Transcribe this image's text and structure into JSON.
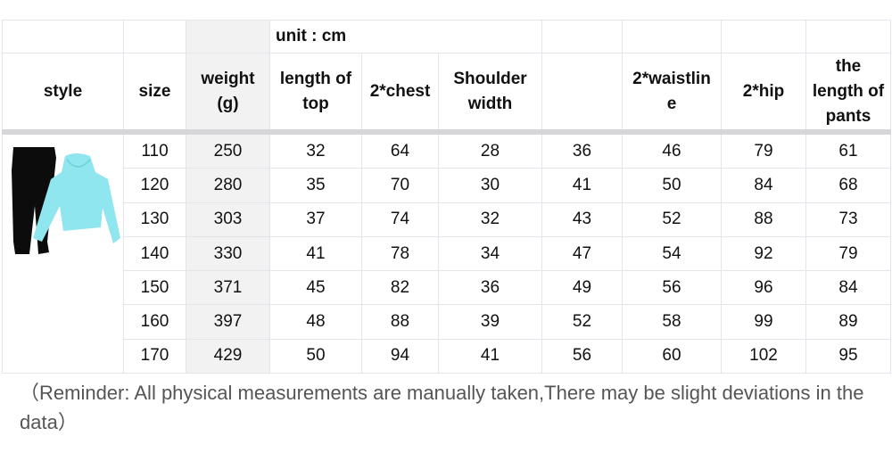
{
  "unit_label": "unit : cm",
  "headers": [
    "style",
    "size",
    "weight\n(g)",
    "length of top",
    "2*chest",
    "Shoulder width",
    "",
    "2*waistline",
    "2*hip",
    "the length of pants"
  ],
  "header_display": {
    "style": "style",
    "size": "size",
    "weight": "weight (g)",
    "length_of_top": "length of top",
    "chest": "2*chest",
    "shoulder": "Shoulder width",
    "blank": "",
    "waistline": "2*waistlin e",
    "hip": "2*hip",
    "pants": "the length of pants"
  },
  "rows": [
    [
      "110",
      "250",
      "32",
      "64",
      "28",
      "36",
      "46",
      "79",
      "61"
    ],
    [
      "120",
      "280",
      "35",
      "70",
      "30",
      "41",
      "50",
      "84",
      "68"
    ],
    [
      "130",
      "303",
      "37",
      "74",
      "32",
      "43",
      "52",
      "88",
      "73"
    ],
    [
      "140",
      "330",
      "41",
      "78",
      "34",
      "47",
      "54",
      "92",
      "79"
    ],
    [
      "150",
      "371",
      "45",
      "82",
      "36",
      "49",
      "56",
      "96",
      "84"
    ],
    [
      "160",
      "397",
      "48",
      "88",
      "39",
      "52",
      "58",
      "99",
      "89"
    ],
    [
      "170",
      "429",
      "50",
      "94",
      "41",
      "56",
      "60",
      "102",
      "95"
    ]
  ],
  "style_image": "black-jogger-pants-and-light-blue-hoodie",
  "colors": {
    "hoodie": "#8fe6ee",
    "pants": "#0c0c0c",
    "weight_column_bg": "#f2f2f2",
    "grid": "#e4e4ea"
  },
  "reminder": "（Reminder: All physical measurements are manually taken,There may be slight deviations in the data）"
}
